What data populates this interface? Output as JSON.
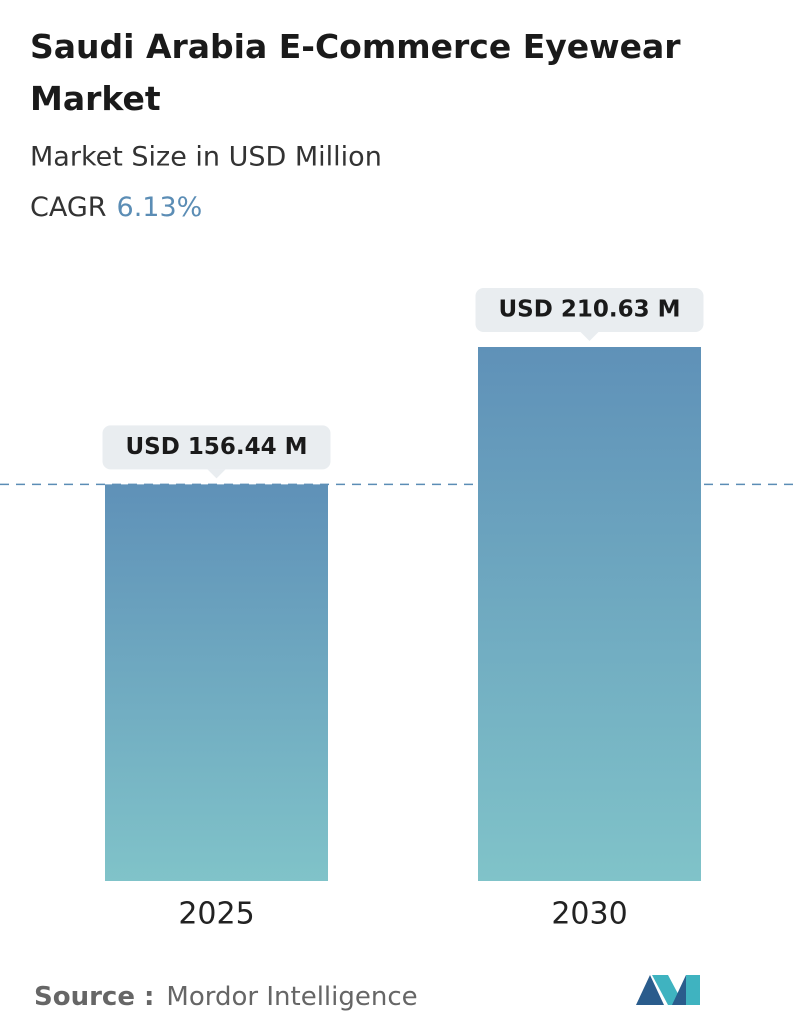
{
  "chart_data": {
    "type": "bar",
    "title": "Saudi Arabia E-Commerce Eyewear Market",
    "subtitle": "Market Size in USD Million",
    "cagr_label": "CAGR",
    "cagr_value": "6.13%",
    "categories": [
      "2025",
      "2030"
    ],
    "values": [
      156.44,
      210.63
    ],
    "value_labels": [
      "USD 156.44 M",
      "USD 210.63 M"
    ],
    "source_label": "Source :",
    "source": "Mordor Intelligence"
  }
}
